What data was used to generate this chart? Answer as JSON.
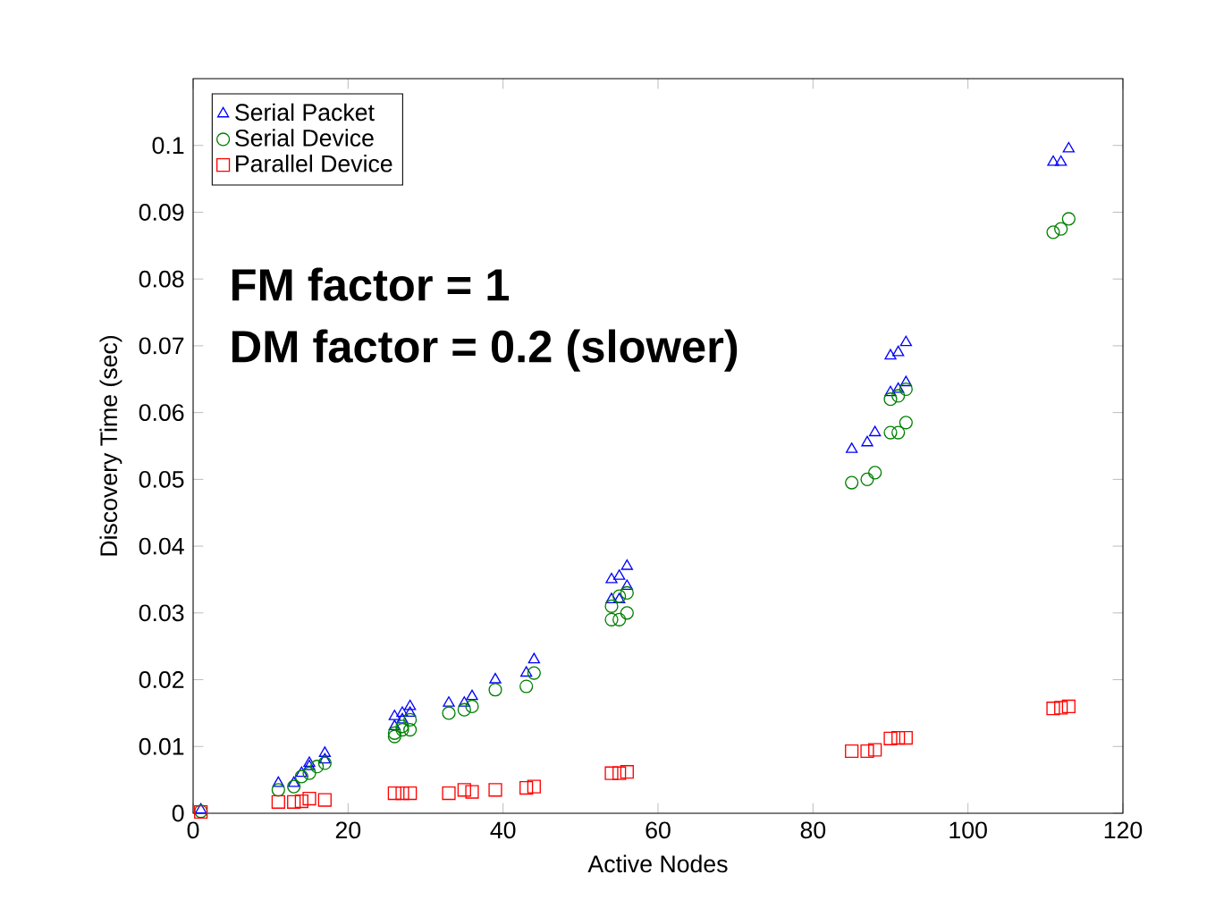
{
  "chart_data": {
    "type": "scatter",
    "xlabel": "Active Nodes",
    "ylabel": "Discovery Time (sec)",
    "annotations": [
      "FM factor = 1",
      "DM factor = 0.2 (slower)"
    ],
    "xlim": [
      0,
      120
    ],
    "xticks": [
      0,
      20,
      40,
      60,
      80,
      100,
      120
    ],
    "ylim": [
      0,
      0.11
    ],
    "yticks": [
      0,
      0.01,
      0.02,
      0.03,
      0.04,
      0.05,
      0.06,
      0.07,
      0.08,
      0.09,
      0.1
    ],
    "grid": false,
    "legend": "top left",
    "series": [
      {
        "name": "Serial Packet",
        "color": "#0000ff",
        "marker": "triangle",
        "x": [
          1,
          11,
          13,
          14,
          15,
          15,
          17,
          17,
          26,
          26,
          27,
          27,
          28,
          28,
          33,
          35,
          36,
          39,
          43,
          44,
          54,
          54,
          55,
          56,
          55,
          56,
          85,
          87,
          88,
          90,
          90,
          91,
          92,
          91,
          92,
          111,
          112,
          113
        ],
        "values": [
          0.0005,
          0.0045,
          0.0045,
          0.006,
          0.007,
          0.0075,
          0.008,
          0.009,
          0.013,
          0.0145,
          0.015,
          0.014,
          0.016,
          0.015,
          0.0165,
          0.0165,
          0.0175,
          0.02,
          0.021,
          0.023,
          0.035,
          0.032,
          0.0355,
          0.037,
          0.032,
          0.034,
          0.0545,
          0.0555,
          0.057,
          0.063,
          0.0685,
          0.069,
          0.0705,
          0.0635,
          0.0645,
          0.0975,
          0.0975,
          0.0995
        ]
      },
      {
        "name": "Serial Device",
        "color": "#008000",
        "marker": "circle",
        "x": [
          1,
          11,
          13,
          14,
          15,
          16,
          17,
          26,
          26,
          27,
          27,
          28,
          28,
          33,
          35,
          36,
          39,
          43,
          44,
          54,
          55,
          54,
          55,
          56,
          56,
          85,
          87,
          88,
          90,
          91,
          92,
          90,
          91,
          92,
          111,
          112,
          113
        ],
        "values": [
          0.0003,
          0.0035,
          0.004,
          0.0055,
          0.006,
          0.007,
          0.0075,
          0.0115,
          0.012,
          0.0125,
          0.013,
          0.0125,
          0.014,
          0.015,
          0.0155,
          0.016,
          0.0185,
          0.019,
          0.021,
          0.029,
          0.029,
          0.031,
          0.0325,
          0.033,
          0.03,
          0.0495,
          0.05,
          0.051,
          0.057,
          0.057,
          0.0585,
          0.062,
          0.0625,
          0.0635,
          0.087,
          0.0875,
          0.089
        ]
      },
      {
        "name": "Parallel Device",
        "color": "#ff0000",
        "marker": "square",
        "x": [
          1,
          11,
          13,
          14,
          15,
          17,
          26,
          27,
          28,
          33,
          35,
          36,
          39,
          43,
          44,
          54,
          55,
          56,
          85,
          87,
          88,
          90,
          91,
          92,
          111,
          112,
          113
        ],
        "values": [
          0.0002,
          0.0017,
          0.0017,
          0.0018,
          0.0022,
          0.002,
          0.003,
          0.003,
          0.003,
          0.003,
          0.0035,
          0.0032,
          0.0035,
          0.0038,
          0.004,
          0.006,
          0.006,
          0.0062,
          0.0093,
          0.0093,
          0.0095,
          0.0112,
          0.0113,
          0.0113,
          0.0157,
          0.0158,
          0.016
        ]
      }
    ]
  }
}
